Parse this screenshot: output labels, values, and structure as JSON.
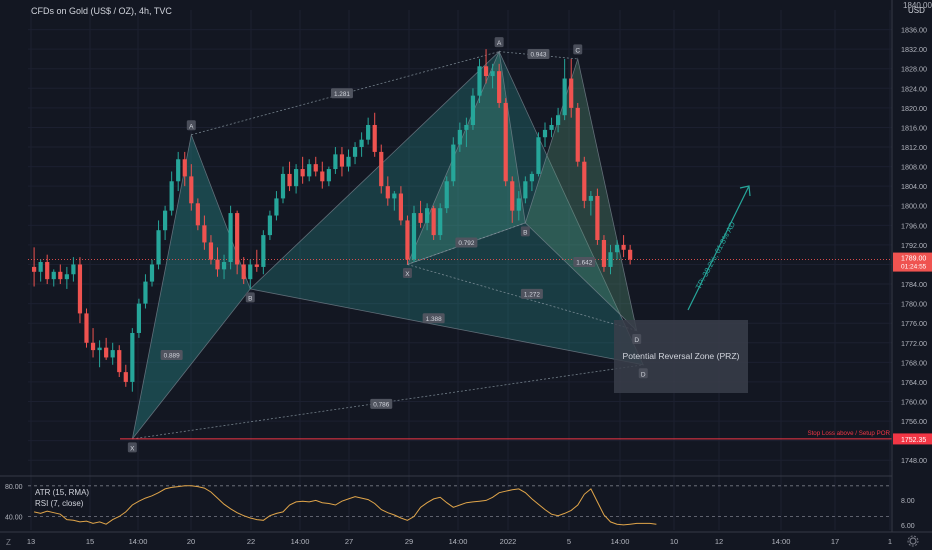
{
  "chart_data": [
    {
      "type": "candlestick",
      "title": "CFDs on Gold (US$ / OZ), 4h, TVC",
      "currency_label": "USD",
      "ylim": [
        1746,
        1840
      ],
      "y_ticks": [
        1748,
        1752,
        1756,
        1760,
        1764,
        1768,
        1772,
        1776,
        1780,
        1784,
        1788,
        1792,
        1796,
        1800,
        1804,
        1808,
        1812,
        1816,
        1820,
        1824,
        1828,
        1832,
        1836
      ],
      "top_cut_label": "1840.00",
      "x_ticks": [
        "13",
        "15",
        "14:00",
        "20",
        "22",
        "14:00",
        "27",
        "29",
        "14:00",
        "2022",
        "5",
        "14:00",
        "10",
        "12",
        "14:00",
        "17",
        "1"
      ],
      "candles": [
        [
          1787.5,
          1791.5,
          1783.5,
          1786.5
        ],
        [
          1786.5,
          1789.0,
          1784.5,
          1788.5
        ],
        [
          1788.5,
          1790.0,
          1784.0,
          1785.0
        ],
        [
          1785.0,
          1787.0,
          1783.5,
          1786.5
        ],
        [
          1786.5,
          1788.0,
          1784.0,
          1785.0
        ],
        [
          1785.0,
          1787.5,
          1783.0,
          1786.0
        ],
        [
          1786.0,
          1789.5,
          1784.5,
          1788.0
        ],
        [
          1788.0,
          1789.5,
          1776.0,
          1778.0
        ],
        [
          1778.0,
          1779.0,
          1771.0,
          1772.0
        ],
        [
          1772.0,
          1775.0,
          1769.0,
          1770.5
        ],
        [
          1770.5,
          1772.5,
          1767.0,
          1771.0
        ],
        [
          1771.0,
          1773.0,
          1768.5,
          1769.0
        ],
        [
          1769.0,
          1772.0,
          1767.5,
          1770.5
        ],
        [
          1770.5,
          1771.5,
          1765.0,
          1766.0
        ],
        [
          1766.0,
          1767.5,
          1763.0,
          1764.0
        ],
        [
          1764.0,
          1775.0,
          1762.0,
          1774.0
        ],
        [
          1774.0,
          1781.0,
          1773.0,
          1780.0
        ],
        [
          1780.0,
          1786.0,
          1779.0,
          1784.5
        ],
        [
          1784.5,
          1789.0,
          1783.5,
          1788.0
        ],
        [
          1788.0,
          1797.0,
          1787.0,
          1795.0
        ],
        [
          1795.0,
          1800.0,
          1793.0,
          1799.0
        ],
        [
          1799.0,
          1807.0,
          1798.0,
          1805.0
        ],
        [
          1805.0,
          1811.0,
          1803.0,
          1809.5
        ],
        [
          1809.5,
          1811.0,
          1804.0,
          1806.0
        ],
        [
          1806.0,
          1808.5,
          1799.0,
          1800.5
        ],
        [
          1800.5,
          1801.5,
          1795.0,
          1796.0
        ],
        [
          1796.0,
          1798.0,
          1791.0,
          1792.5
        ],
        [
          1792.5,
          1794.0,
          1788.0,
          1789.0
        ],
        [
          1789.0,
          1791.5,
          1785.5,
          1787.0
        ],
        [
          1787.0,
          1790.0,
          1785.0,
          1788.5
        ],
        [
          1788.5,
          1800.0,
          1787.0,
          1798.5
        ],
        [
          1798.5,
          1799.0,
          1786.0,
          1788.0
        ],
        [
          1788.0,
          1789.5,
          1784.0,
          1785.0
        ],
        [
          1785.0,
          1789.0,
          1783.0,
          1788.0
        ],
        [
          1788.0,
          1791.0,
          1786.5,
          1787.5
        ],
        [
          1787.5,
          1795.0,
          1786.0,
          1794.0
        ],
        [
          1794.0,
          1799.0,
          1793.0,
          1798.0
        ],
        [
          1798.0,
          1803.0,
          1797.0,
          1801.5
        ],
        [
          1801.5,
          1808.0,
          1800.5,
          1806.5
        ],
        [
          1806.5,
          1809.0,
          1803.0,
          1804.0
        ],
        [
          1804.0,
          1808.5,
          1802.5,
          1807.5
        ],
        [
          1807.5,
          1810.0,
          1804.5,
          1806.0
        ],
        [
          1806.0,
          1809.5,
          1805.0,
          1808.5
        ],
        [
          1808.5,
          1810.0,
          1806.0,
          1807.0
        ],
        [
          1807.0,
          1809.0,
          1803.5,
          1805.0
        ],
        [
          1805.0,
          1808.0,
          1804.0,
          1807.5
        ],
        [
          1807.5,
          1812.0,
          1806.5,
          1810.5
        ],
        [
          1810.5,
          1812.0,
          1806.0,
          1808.0
        ],
        [
          1808.0,
          1811.5,
          1807.0,
          1810.0
        ],
        [
          1810.0,
          1813.0,
          1808.5,
          1812.0
        ],
        [
          1812.0,
          1815.0,
          1810.0,
          1813.5
        ],
        [
          1813.5,
          1818.0,
          1812.5,
          1816.5
        ],
        [
          1816.5,
          1819.0,
          1810.0,
          1811.0
        ],
        [
          1811.0,
          1812.5,
          1802.5,
          1804.0
        ],
        [
          1804.0,
          1806.0,
          1800.0,
          1801.5
        ],
        [
          1801.5,
          1803.0,
          1799.0,
          1802.5
        ],
        [
          1802.5,
          1804.0,
          1796.0,
          1797.0
        ],
        [
          1797.0,
          1798.0,
          1788.0,
          1789.0
        ],
        [
          1789.0,
          1800.0,
          1788.5,
          1798.5
        ],
        [
          1798.5,
          1801.0,
          1795.5,
          1796.5
        ],
        [
          1796.5,
          1800.5,
          1795.0,
          1799.5
        ],
        [
          1799.5,
          1800.0,
          1793.0,
          1794.0
        ],
        [
          1794.0,
          1800.5,
          1793.0,
          1799.5
        ],
        [
          1799.5,
          1806.0,
          1798.5,
          1805.0
        ],
        [
          1805.0,
          1814.0,
          1804.0,
          1812.5
        ],
        [
          1812.5,
          1817.0,
          1811.0,
          1815.5
        ],
        [
          1815.5,
          1818.0,
          1812.0,
          1816.5
        ],
        [
          1816.5,
          1824.0,
          1815.5,
          1822.5
        ],
        [
          1822.5,
          1830.0,
          1821.0,
          1828.5
        ],
        [
          1828.5,
          1832.0,
          1825.0,
          1826.5
        ],
        [
          1826.5,
          1829.0,
          1824.0,
          1827.5
        ],
        [
          1827.5,
          1829.0,
          1820.0,
          1821.0
        ],
        [
          1821.0,
          1822.0,
          1804.0,
          1805.0
        ],
        [
          1805.0,
          1806.0,
          1796.5,
          1799.0
        ],
        [
          1799.0,
          1803.0,
          1797.0,
          1801.5
        ],
        [
          1801.5,
          1806.0,
          1800.5,
          1805.0
        ],
        [
          1805.0,
          1807.0,
          1803.0,
          1806.5
        ],
        [
          1806.5,
          1815.0,
          1806.0,
          1814.0
        ],
        [
          1814.0,
          1817.0,
          1812.0,
          1815.5
        ],
        [
          1815.5,
          1818.0,
          1814.0,
          1816.5
        ],
        [
          1816.5,
          1820.0,
          1815.0,
          1818.5
        ],
        [
          1818.5,
          1830.0,
          1817.5,
          1826.0
        ],
        [
          1826.0,
          1830.0,
          1818.0,
          1820.0
        ],
        [
          1820.0,
          1821.0,
          1808.0,
          1809.0
        ],
        [
          1809.0,
          1810.0,
          1799.5,
          1801.0
        ],
        [
          1801.0,
          1803.0,
          1798.0,
          1802.0
        ],
        [
          1802.0,
          1803.5,
          1792.0,
          1793.0
        ],
        [
          1793.0,
          1794.0,
          1786.5,
          1787.5
        ],
        [
          1787.5,
          1792.0,
          1786.0,
          1790.5
        ],
        [
          1790.5,
          1793.0,
          1789.0,
          1792.0
        ],
        [
          1792.0,
          1794.0,
          1789.5,
          1791.0
        ],
        [
          1791.0,
          1792.0,
          1788.0,
          1789.0
        ]
      ],
      "last_price": "1789.00",
      "countdown": "01:24:55",
      "stop_level": 1752.35,
      "stop_level_label": "1752.35",
      "stop_text": "Stop Loss above / Setup POR",
      "pattern_points": [
        {
          "label": "X",
          "candle": 15,
          "price": 1752.35,
          "pos": "below"
        },
        {
          "label": "A",
          "candle": 24,
          "price": 1814.5,
          "pos": "above"
        },
        {
          "label": "B",
          "candle": 33,
          "price": 1783.0,
          "pos": "below"
        },
        {
          "label": "X",
          "candle": 57,
          "price": 1788.0,
          "pos": "below"
        },
        {
          "label": "A",
          "candle": 71,
          "price": 1831.5,
          "pos": "above"
        },
        {
          "label": "B",
          "candle": 75,
          "price": 1796.5,
          "pos": "below"
        },
        {
          "label": "C",
          "candle": 83,
          "price": 1830.0,
          "pos": "above"
        },
        {
          "label": "D",
          "candle": 92,
          "price": 1774.5,
          "pos": "below"
        },
        {
          "label": "D",
          "candle": 93,
          "price": 1767.5,
          "pos": "below"
        }
      ],
      "ratio_labels": [
        {
          "text": "1.281",
          "candle": 47,
          "price": 1823.0
        },
        {
          "text": "0.943",
          "candle": 77,
          "price": 1831.0
        },
        {
          "text": "0.889",
          "candle": 21,
          "price": 1769.5
        },
        {
          "text": "0.792",
          "candle": 66,
          "price": 1792.5
        },
        {
          "text": "1.642",
          "candle": 84,
          "price": 1788.5
        },
        {
          "text": "1.272",
          "candle": 76,
          "price": 1782.0
        },
        {
          "text": "1.388",
          "candle": 61,
          "price": 1777.0
        },
        {
          "text": "0.786",
          "candle": 53,
          "price": 1759.5
        }
      ],
      "prz_label": "Potential Reversal Zone (PRZ)",
      "tp_label": "TP: 38.2%, 61.8% AD",
      "indicator": {
        "label_atr": "ATR (15, RMA)",
        "label_rsi": "RSI (7, close)",
        "left_ticks": [
          "80.00",
          "40.00"
        ],
        "right_ticks": [
          "8.00",
          "6.00"
        ],
        "values": [
          46,
          44,
          47,
          45,
          43,
          36,
          35,
          33,
          34,
          31,
          33,
          30,
          36,
          40,
          46,
          55,
          60,
          64,
          67,
          71,
          76,
          78,
          79,
          80,
          80,
          79,
          77,
          72,
          64,
          56,
          50,
          45,
          41,
          38,
          36,
          35,
          41,
          44,
          46,
          55,
          59,
          60,
          59,
          61,
          58,
          57,
          55,
          60,
          63,
          66,
          64,
          62,
          57,
          49,
          45,
          42,
          38,
          35,
          40,
          52,
          58,
          63,
          65,
          58,
          52,
          55,
          58,
          59,
          60,
          61,
          65,
          71,
          73,
          75,
          76,
          71,
          63,
          56,
          49,
          43,
          41,
          44,
          48,
          55,
          69,
          76,
          59,
          42,
          33,
          30,
          29,
          30,
          31,
          31,
          31,
          30
        ]
      }
    }
  ],
  "colors": {
    "up": "#26a69a",
    "down": "#ef5350",
    "pattern_stroke": "#8c9ba5",
    "prz_fill": "#2a2e39",
    "stop_line": "#f23645",
    "last_price_bg": "#ef5350",
    "indicator_line": "#e0a54a"
  },
  "footer_icons": [
    "z-icon",
    "gear-icon"
  ]
}
